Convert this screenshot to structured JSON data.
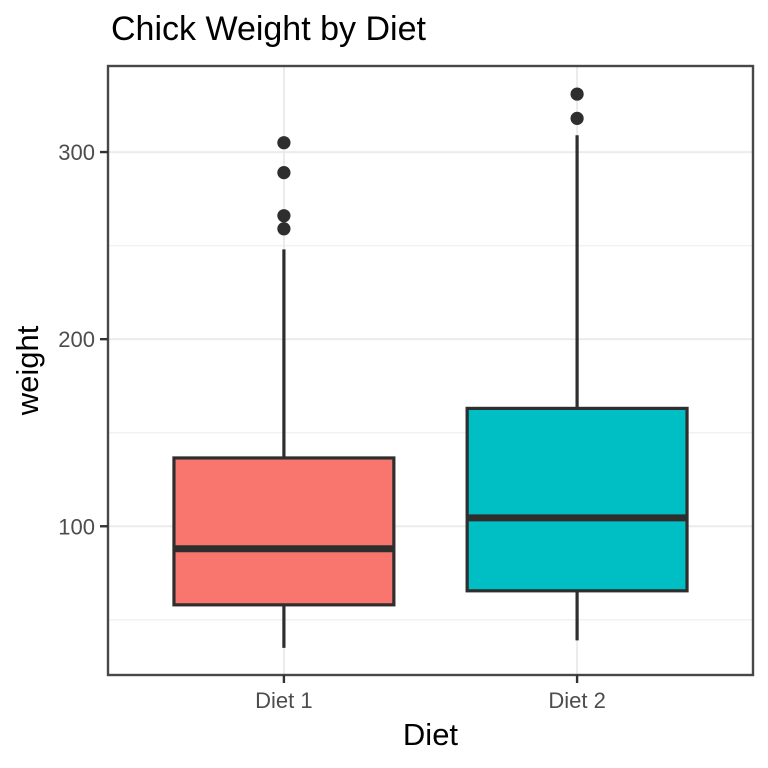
{
  "chart_data": {
    "type": "boxplot",
    "title": "Chick Weight by Diet",
    "xlabel": "Diet",
    "ylabel": "weight",
    "categories": [
      "Diet 1",
      "Diet 2"
    ],
    "series": [
      {
        "name": "Diet 1",
        "fill": "#F8766D",
        "whisker_low": 35,
        "q1": 58,
        "median": 88,
        "q3": 136.5,
        "whisker_high": 248,
        "outliers": [
          305,
          289,
          266,
          259
        ]
      },
      {
        "name": "Diet 2",
        "fill": "#00BFC4",
        "whisker_low": 39,
        "q1": 65.5,
        "median": 104.5,
        "q3": 163,
        "whisker_high": 309,
        "outliers": [
          331,
          318
        ]
      }
    ],
    "y_major_ticks": [
      100,
      200,
      300
    ],
    "y_minor_ticks": [
      50,
      150,
      250
    ],
    "ylim": [
      20.5,
      346
    ],
    "grid": true,
    "legend_position": "none",
    "styling": {
      "background": "#FFFFFF",
      "panel_background": "#FFFFFF",
      "panel_border": "#474747",
      "grid_major": "#EBEBEB",
      "grid_minor": "#F1F1F1",
      "box_stroke": "#2E2E2E",
      "median_stroke": "#2E2E2E",
      "whisker_stroke": "#2E2E2E",
      "outlier_fill": "#2E2E2E",
      "tick_mark_color": "#333333",
      "tick_label_color": "#4D4D4D",
      "axis_title_color": "#000000",
      "title_color": "#000000"
    }
  }
}
